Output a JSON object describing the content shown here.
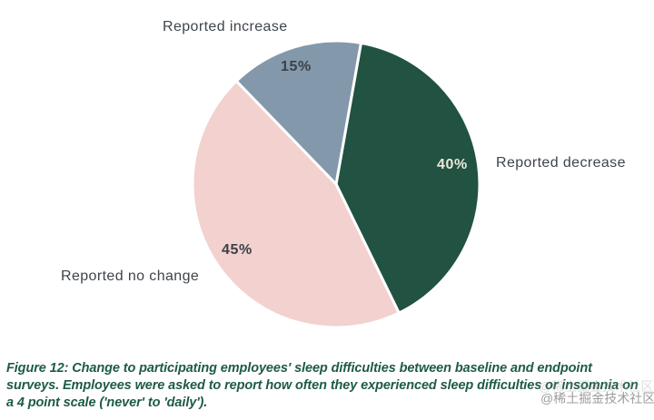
{
  "chart_data": {
    "type": "pie",
    "title": "",
    "start_angle_deg": 10,
    "direction": "clockwise",
    "separator_color": "#ffffff",
    "label_color": "#3e444b",
    "slices": [
      {
        "id": "decrease",
        "label": "Reported decrease",
        "value": 40,
        "pct_label": "40%",
        "color": "#215242",
        "pct_label_color": "#ece7db"
      },
      {
        "id": "no-change",
        "label": "Reported no change",
        "value": 45,
        "pct_label": "45%",
        "color": "#f2d1ce",
        "pct_label_color": "#3b4149"
      },
      {
        "id": "increase",
        "label": "Reported increase",
        "value": 15,
        "pct_label": "15%",
        "color": "#8399ab",
        "pct_label_color": "#3b4149"
      }
    ]
  },
  "caption": {
    "color": "#1e5a49",
    "lines": [
      "Figure 12: Change to participating employees' sleep difficulties between baseline and endpoint",
      "surveys. Employees were asked to report how often they experienced sleep difficulties or insomnia on",
      "a 4 point scale ('never' to 'daily')."
    ]
  },
  "watermark": {
    "text": "@稀土掘金技术社区"
  }
}
